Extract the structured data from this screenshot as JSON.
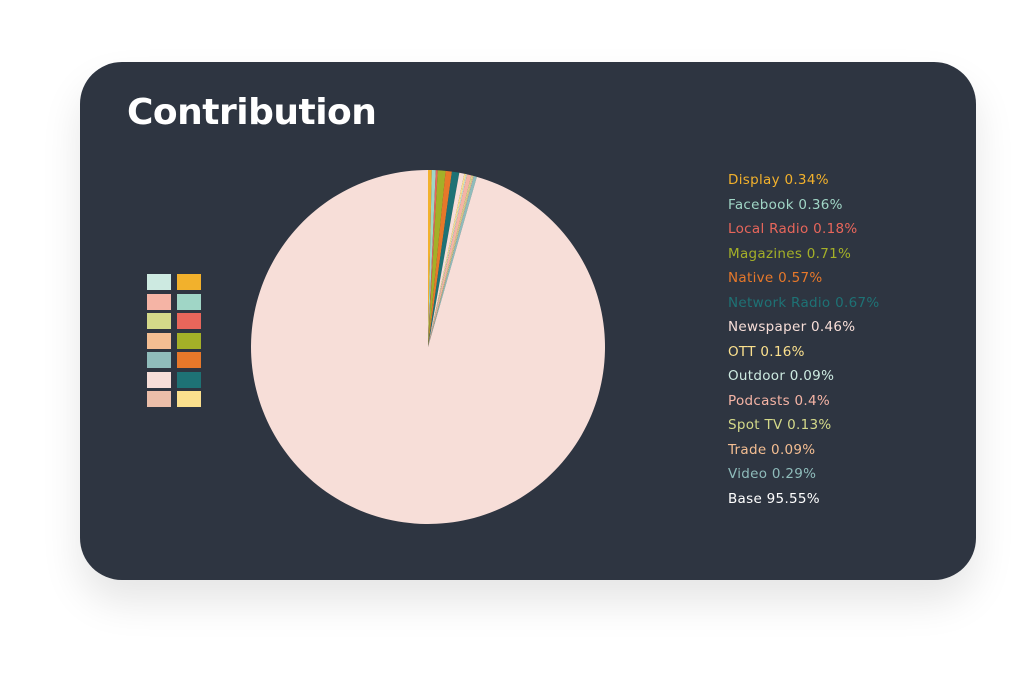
{
  "chart_data": {
    "type": "pie",
    "title": "Contribution",
    "slices": [
      {
        "label": "Display 0.34%",
        "value": 0.34,
        "color": "#f2b12c"
      },
      {
        "label": "Facebook 0.36%",
        "value": 0.36,
        "color": "#a0d6c6"
      },
      {
        "label": "Local Radio 0.18%",
        "value": 0.18,
        "color": "#e8665b"
      },
      {
        "label": "Magazines 0.71%",
        "value": 0.71,
        "color": "#a4b028"
      },
      {
        "label": "Native 0.57%",
        "value": 0.57,
        "color": "#e7782a"
      },
      {
        "label": "Network Radio 0.67%",
        "value": 0.67,
        "color": "#1e7275"
      },
      {
        "label": "Newspaper 0.46%",
        "value": 0.46,
        "color": "#f7ded8"
      },
      {
        "label": "OTT 0.16%",
        "value": 0.16,
        "color": "#fbe08d"
      },
      {
        "label": "Outdoor 0.09%",
        "value": 0.09,
        "color": "#cdeae1"
      },
      {
        "label": "Podcasts 0.4%",
        "value": 0.4,
        "color": "#f5b4a5"
      },
      {
        "label": "Spot TV 0.13%",
        "value": 0.13,
        "color": "#d4d989"
      },
      {
        "label": "Trade 0.09%",
        "value": 0.09,
        "color": "#f4be92"
      },
      {
        "label": "Video 0.29%",
        "value": 0.29,
        "color": "#8fbcbb"
      },
      {
        "label": "Base 95.55%",
        "value": 95.55,
        "color": "#f7ded8"
      }
    ],
    "legend_position": "right",
    "legend_label_colors": [
      "#f2b12c",
      "#a0d6c6",
      "#e8665b",
      "#a4b028",
      "#e7782a",
      "#1e7275",
      "#f7ded8",
      "#fbe08d",
      "#cdeae1",
      "#f5b4a5",
      "#d4d989",
      "#f4be92",
      "#8fbcbb",
      "#ffffff"
    ],
    "palette_swatches": [
      "#cdeae1",
      "#f2b12c",
      "#f5b4a5",
      "#a0d6c6",
      "#d4d989",
      "#e8665b",
      "#f4be92",
      "#a4b028",
      "#8fbcbb",
      "#e7782a",
      "#f7ded8",
      "#1e7275",
      "#ebbea9",
      "#fbe08d"
    ]
  },
  "colors": {
    "card_background": "#2e3541",
    "title": "#ffffff"
  }
}
